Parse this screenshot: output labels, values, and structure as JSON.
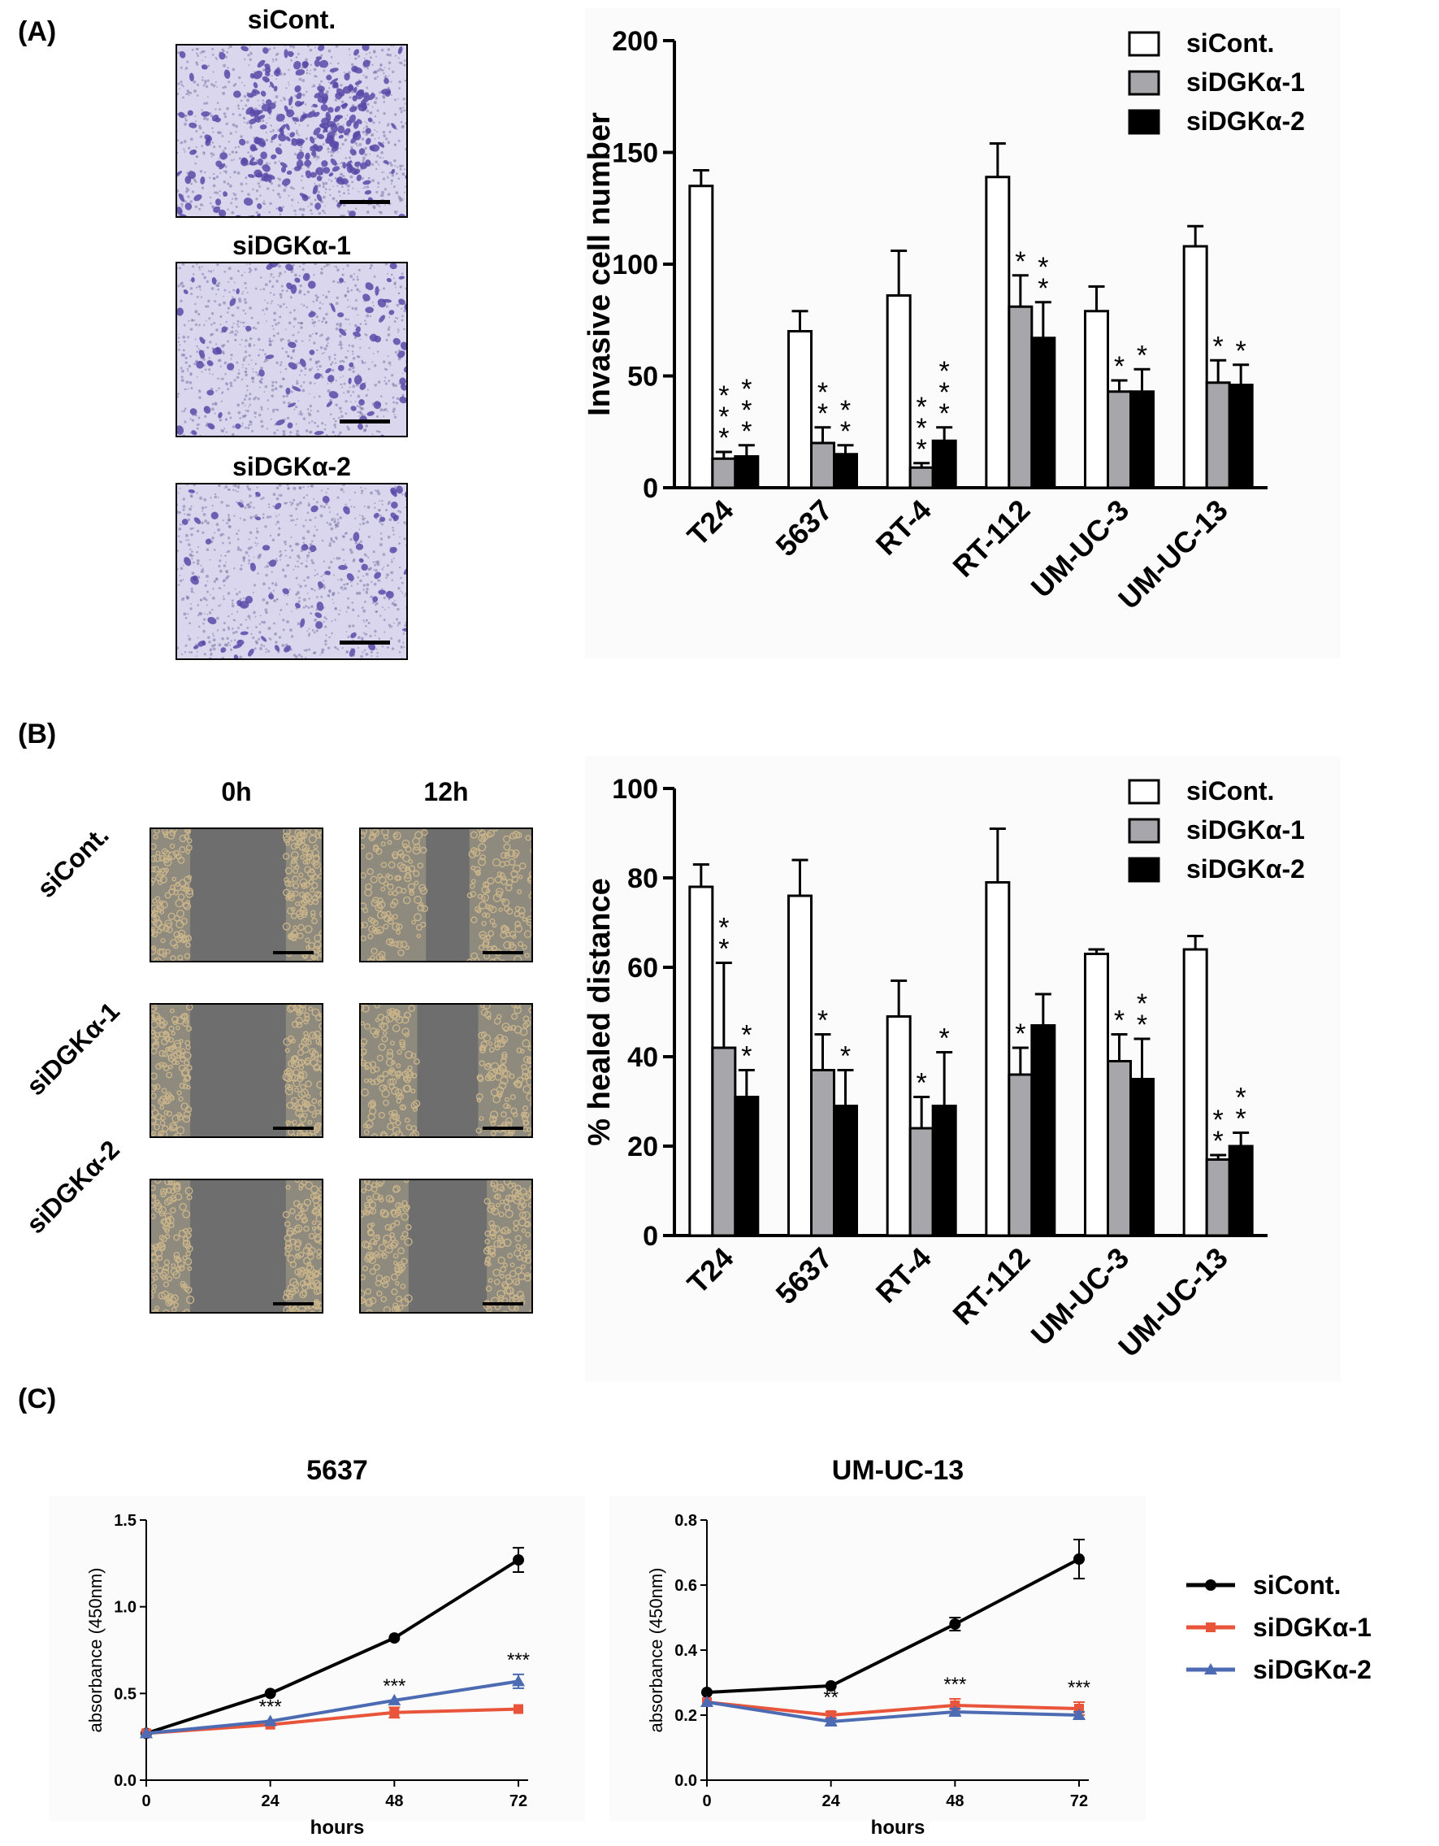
{
  "panels": {
    "a": {
      "letter": "(A)",
      "images": [
        "siCont.",
        "siDGKα-1",
        "siDGKα-2"
      ]
    },
    "b": {
      "letter": "(B)",
      "col_labels": [
        "0h",
        "12h"
      ],
      "row_labels": [
        "siCont.",
        "siDGKα-1",
        "siDGKα-2"
      ]
    },
    "c": {
      "letter": "(C)"
    }
  },
  "colors": {
    "siCont_bar": "#ffffff",
    "siDGK1_bar": "#a7a7ab",
    "siDGK2_bar": "#000000",
    "siCont_line": "#000000",
    "siDGK1_line": "#e8553a",
    "siDGK2_line": "#4c6bb3",
    "invasion_stain": "#5a4aa8",
    "wound_cells": "#c9b48a",
    "wound_gap": "#6e6e6e"
  },
  "chart_data": [
    {
      "id": "invasion",
      "type": "bar",
      "ylabel": "Invasive cell number",
      "ylim": [
        0,
        200
      ],
      "yticks": [
        0,
        50,
        100,
        150,
        200
      ],
      "categories": [
        "T24",
        "5637",
        "RT-4",
        "RT-112",
        "UM-UC-3",
        "UM-UC-13"
      ],
      "legend": [
        "siCont.",
        "siDGKα-1",
        "siDGKα-2"
      ],
      "series": [
        {
          "name": "siCont.",
          "values": [
            135,
            70,
            86,
            139,
            79,
            108
          ],
          "errors": [
            7,
            9,
            20,
            15,
            11,
            9
          ]
        },
        {
          "name": "siDGKα-1",
          "values": [
            13,
            20,
            9,
            81,
            43,
            47
          ],
          "errors": [
            3,
            7,
            2,
            14,
            5,
            10
          ]
        },
        {
          "name": "siDGKα-2",
          "values": [
            14,
            15,
            21,
            67,
            43,
            46
          ],
          "errors": [
            5,
            4,
            6,
            16,
            10,
            9
          ]
        }
      ],
      "significance": [
        [
          "",
          "***",
          "***"
        ],
        [
          "",
          "**",
          "**"
        ],
        [
          "",
          "***",
          "***"
        ],
        [
          "",
          "*",
          "**"
        ],
        [
          "",
          "*",
          "*"
        ],
        [
          "",
          "*",
          "*"
        ]
      ]
    },
    {
      "id": "healing",
      "type": "bar",
      "ylabel": "% healed distance",
      "ylim": [
        0,
        100
      ],
      "yticks": [
        0,
        20,
        40,
        60,
        80,
        100
      ],
      "categories": [
        "T24",
        "5637",
        "RT-4",
        "RT-112",
        "UM-UC-3",
        "UM-UC-13"
      ],
      "legend": [
        "siCont.",
        "siDGKα-1",
        "siDGKα-2"
      ],
      "series": [
        {
          "name": "siCont.",
          "values": [
            78,
            76,
            49,
            79,
            63,
            64
          ],
          "errors": [
            5,
            8,
            8,
            12,
            1,
            3
          ]
        },
        {
          "name": "siDGKα-1",
          "values": [
            42,
            37,
            24,
            36,
            39,
            17
          ],
          "errors": [
            19,
            8,
            7,
            6,
            6,
            1
          ]
        },
        {
          "name": "siDGKα-2",
          "values": [
            31,
            29,
            29,
            47,
            35,
            20
          ],
          "errors": [
            6,
            8,
            12,
            7,
            9,
            3
          ]
        }
      ],
      "significance": [
        [
          "",
          "**",
          "**"
        ],
        [
          "",
          "*",
          "*"
        ],
        [
          "",
          "*",
          "*"
        ],
        [
          "",
          "*",
          ""
        ],
        [
          "",
          "*",
          "**"
        ],
        [
          "",
          "**",
          "**"
        ]
      ]
    },
    {
      "id": "growth-5637",
      "type": "line",
      "title": "5637",
      "xlabel": "hours",
      "ylabel": "absorbance (450nm)",
      "x": [
        0,
        24,
        48,
        72
      ],
      "xticks": [
        0,
        24,
        48,
        72
      ],
      "ylim": [
        0,
        1.5
      ],
      "yticks": [
        "0.0",
        "0.5",
        "1.0",
        "1.5"
      ],
      "series": [
        {
          "name": "siCont.",
          "values": [
            0.27,
            0.5,
            0.82,
            1.27
          ],
          "errors": [
            0,
            0,
            0,
            0.07
          ]
        },
        {
          "name": "siDGKα-1",
          "values": [
            0.27,
            0.32,
            0.39,
            0.41
          ],
          "errors": [
            0,
            0,
            0.03,
            0
          ]
        },
        {
          "name": "siDGKα-2",
          "values": [
            0.27,
            0.34,
            0.46,
            0.57
          ],
          "errors": [
            0,
            0,
            0,
            0.04
          ]
        }
      ],
      "significance": [
        "",
        "***",
        "***",
        "***"
      ]
    },
    {
      "id": "growth-umuc13",
      "type": "line",
      "title": "UM-UC-13",
      "xlabel": "hours",
      "ylabel": "absorbance (450nm)",
      "x": [
        0,
        24,
        48,
        72
      ],
      "xticks": [
        0,
        24,
        48,
        72
      ],
      "ylim": [
        0,
        0.8
      ],
      "yticks": [
        "0.0",
        "0.2",
        "0.4",
        "0.6",
        "0.8"
      ],
      "series": [
        {
          "name": "siCont.",
          "values": [
            0.27,
            0.29,
            0.48,
            0.68
          ],
          "errors": [
            0,
            0,
            0.02,
            0.06
          ]
        },
        {
          "name": "siDGKα-1",
          "values": [
            0.24,
            0.2,
            0.23,
            0.22
          ],
          "errors": [
            0,
            0.01,
            0.02,
            0.02
          ]
        },
        {
          "name": "siDGKα-2",
          "values": [
            0.24,
            0.18,
            0.21,
            0.2
          ],
          "errors": [
            0,
            0.01,
            0.01,
            0.01
          ]
        }
      ],
      "significance": [
        "",
        "**",
        "***",
        "***"
      ]
    }
  ],
  "line_legend": [
    "siCont.",
    "siDGKα-1",
    "siDGKα-2"
  ]
}
